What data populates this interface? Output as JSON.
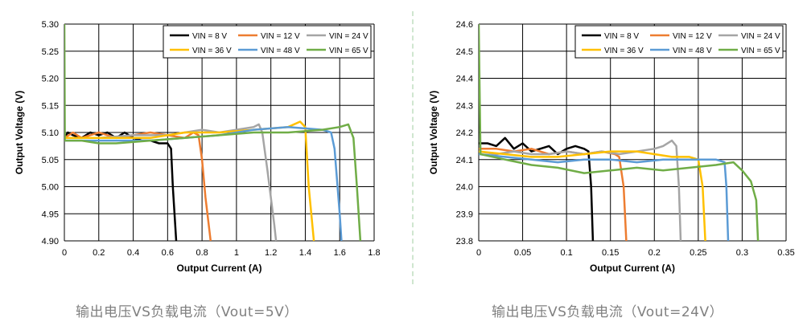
{
  "captions": {
    "left": "输出电压VS负载电流（Vout=5V）",
    "right": "输出电压VS负载电流（Vout=24V）"
  },
  "colors": {
    "VIN = 8 V": "#000000",
    "VIN = 12 V": "#ED7D31",
    "VIN = 24 V": "#A5A5A5",
    "VIN = 36 V": "#FFC000",
    "VIN = 48 V": "#5B9BD5",
    "VIN = 65 V": "#70AD47"
  },
  "chart_data": [
    {
      "type": "line",
      "xlabel": "Output Current (A)",
      "ylabel": "Output Voltage (V)",
      "xlim": [
        0,
        1.8
      ],
      "ylim": [
        4.9,
        5.3
      ],
      "xticks": [
        "0",
        "0.2",
        "0.4",
        "0.6",
        "0.8",
        "1",
        "1.2",
        "1.4",
        "1.6",
        "1.8"
      ],
      "yticks": [
        "4.90",
        "4.95",
        "5.00",
        "5.05",
        "5.10",
        "5.15",
        "5.20",
        "5.25",
        "5.30"
      ],
      "grid": true,
      "legend_position": "top-right",
      "series": [
        {
          "name": "VIN = 8 V",
          "points": [
            [
              0,
              5.09
            ],
            [
              0.02,
              5.1
            ],
            [
              0.05,
              5.095
            ],
            [
              0.1,
              5.09
            ],
            [
              0.15,
              5.1
            ],
            [
              0.2,
              5.095
            ],
            [
              0.25,
              5.1
            ],
            [
              0.3,
              5.09
            ],
            [
              0.35,
              5.1
            ],
            [
              0.4,
              5.09
            ],
            [
              0.45,
              5.085
            ],
            [
              0.5,
              5.085
            ],
            [
              0.55,
              5.08
            ],
            [
              0.6,
              5.08
            ],
            [
              0.62,
              5.07
            ],
            [
              0.63,
              5.0
            ],
            [
              0.65,
              4.9
            ]
          ]
        },
        {
          "name": "VIN = 12 V",
          "points": [
            [
              0,
              5.09
            ],
            [
              0.05,
              5.1
            ],
            [
              0.1,
              5.09
            ],
            [
              0.2,
              5.1
            ],
            [
              0.3,
              5.09
            ],
            [
              0.4,
              5.095
            ],
            [
              0.5,
              5.1
            ],
            [
              0.6,
              5.095
            ],
            [
              0.7,
              5.09
            ],
            [
              0.75,
              5.1
            ],
            [
              0.78,
              5.095
            ],
            [
              0.8,
              5.05
            ],
            [
              0.82,
              4.98
            ],
            [
              0.85,
              4.9
            ]
          ]
        },
        {
          "name": "VIN = 24 V",
          "points": [
            [
              0,
              5.09
            ],
            [
              0.1,
              5.09
            ],
            [
              0.2,
              5.09
            ],
            [
              0.4,
              5.095
            ],
            [
              0.6,
              5.095
            ],
            [
              0.8,
              5.105
            ],
            [
              0.9,
              5.1
            ],
            [
              1.0,
              5.105
            ],
            [
              1.1,
              5.11
            ],
            [
              1.13,
              5.115
            ],
            [
              1.15,
              5.1
            ],
            [
              1.18,
              5.03
            ],
            [
              1.22,
              4.93
            ],
            [
              1.23,
              4.9
            ]
          ]
        },
        {
          "name": "VIN = 36 V",
          "points": [
            [
              0,
              5.09
            ],
            [
              0.1,
              5.09
            ],
            [
              0.3,
              5.09
            ],
            [
              0.5,
              5.09
            ],
            [
              0.7,
              5.1
            ],
            [
              0.9,
              5.1
            ],
            [
              1.1,
              5.105
            ],
            [
              1.3,
              5.11
            ],
            [
              1.37,
              5.12
            ],
            [
              1.4,
              5.11
            ],
            [
              1.42,
              5.0
            ],
            [
              1.45,
              4.9
            ]
          ]
        },
        {
          "name": "VIN = 48 V",
          "points": [
            [
              0,
              5.085
            ],
            [
              0.1,
              5.085
            ],
            [
              0.3,
              5.085
            ],
            [
              0.5,
              5.085
            ],
            [
              0.7,
              5.09
            ],
            [
              0.9,
              5.095
            ],
            [
              1.1,
              5.105
            ],
            [
              1.3,
              5.11
            ],
            [
              1.5,
              5.105
            ],
            [
              1.55,
              5.1
            ],
            [
              1.57,
              5.07
            ],
            [
              1.6,
              4.95
            ],
            [
              1.61,
              4.9
            ]
          ]
        },
        {
          "name": "VIN = 65 V",
          "points": [
            [
              0,
              5.3
            ],
            [
              0.003,
              5.085
            ],
            [
              0.1,
              5.085
            ],
            [
              0.2,
              5.08
            ],
            [
              0.3,
              5.08
            ],
            [
              0.5,
              5.085
            ],
            [
              0.7,
              5.09
            ],
            [
              0.9,
              5.095
            ],
            [
              1.1,
              5.1
            ],
            [
              1.3,
              5.1
            ],
            [
              1.5,
              5.105
            ],
            [
              1.6,
              5.11
            ],
            [
              1.65,
              5.115
            ],
            [
              1.68,
              5.09
            ],
            [
              1.7,
              5.0
            ],
            [
              1.72,
              4.9
            ]
          ]
        }
      ]
    },
    {
      "type": "line",
      "xlabel": "Output Current (A)",
      "ylabel": "Output Voltage (V)",
      "xlim": [
        0,
        0.35
      ],
      "ylim": [
        23.8,
        24.6
      ],
      "xticks": [
        "0",
        "0.05",
        "0.1",
        "0.15",
        "0.2",
        "0.25",
        "0.3",
        "0.35"
      ],
      "yticks": [
        "23.8",
        "23.9",
        "24.0",
        "24.1",
        "24.2",
        "24.3",
        "24.4",
        "24.5",
        "24.6"
      ],
      "grid": true,
      "legend_position": "top-right",
      "series": [
        {
          "name": "VIN = 8 V",
          "points": [
            [
              0,
              24.16
            ],
            [
              0.01,
              24.16
            ],
            [
              0.02,
              24.15
            ],
            [
              0.03,
              24.18
            ],
            [
              0.04,
              24.14
            ],
            [
              0.05,
              24.16
            ],
            [
              0.06,
              24.13
            ],
            [
              0.07,
              24.14
            ],
            [
              0.08,
              24.15
            ],
            [
              0.09,
              24.12
            ],
            [
              0.1,
              24.14
            ],
            [
              0.11,
              24.15
            ],
            [
              0.12,
              24.14
            ],
            [
              0.125,
              24.13
            ],
            [
              0.128,
              24.0
            ],
            [
              0.13,
              23.8
            ]
          ]
        },
        {
          "name": "VIN = 12 V",
          "points": [
            [
              0,
              24.14
            ],
            [
              0.02,
              24.14
            ],
            [
              0.04,
              24.13
            ],
            [
              0.06,
              24.14
            ],
            [
              0.08,
              24.12
            ],
            [
              0.1,
              24.13
            ],
            [
              0.12,
              24.12
            ],
            [
              0.14,
              24.13
            ],
            [
              0.155,
              24.12
            ],
            [
              0.16,
              24.11
            ],
            [
              0.165,
              24.0
            ],
            [
              0.168,
              23.8
            ]
          ]
        },
        {
          "name": "VIN = 24 V",
          "points": [
            [
              0,
              24.13
            ],
            [
              0.02,
              24.12
            ],
            [
              0.04,
              24.13
            ],
            [
              0.06,
              24.12
            ],
            [
              0.08,
              24.12
            ],
            [
              0.1,
              24.13
            ],
            [
              0.12,
              24.12
            ],
            [
              0.14,
              24.13
            ],
            [
              0.16,
              24.12
            ],
            [
              0.18,
              24.13
            ],
            [
              0.2,
              24.14
            ],
            [
              0.21,
              24.15
            ],
            [
              0.22,
              24.17
            ],
            [
              0.225,
              24.15
            ],
            [
              0.228,
              24.0
            ],
            [
              0.23,
              23.8
            ]
          ]
        },
        {
          "name": "VIN = 36 V",
          "points": [
            [
              0,
              24.13
            ],
            [
              0.03,
              24.12
            ],
            [
              0.06,
              24.11
            ],
            [
              0.09,
              24.11
            ],
            [
              0.12,
              24.12
            ],
            [
              0.15,
              24.13
            ],
            [
              0.18,
              24.13
            ],
            [
              0.2,
              24.12
            ],
            [
              0.22,
              24.11
            ],
            [
              0.24,
              24.11
            ],
            [
              0.25,
              24.1
            ],
            [
              0.255,
              24.0
            ],
            [
              0.258,
              23.8
            ]
          ]
        },
        {
          "name": "VIN = 48 V",
          "points": [
            [
              0,
              24.12
            ],
            [
              0.03,
              24.11
            ],
            [
              0.06,
              24.1
            ],
            [
              0.09,
              24.09
            ],
            [
              0.12,
              24.1
            ],
            [
              0.15,
              24.1
            ],
            [
              0.18,
              24.09
            ],
            [
              0.21,
              24.1
            ],
            [
              0.24,
              24.1
            ],
            [
              0.27,
              24.1
            ],
            [
              0.28,
              24.09
            ],
            [
              0.282,
              24.0
            ],
            [
              0.284,
              23.8
            ]
          ]
        },
        {
          "name": "VIN = 65 V",
          "points": [
            [
              0,
              24.6
            ],
            [
              0.002,
              24.12
            ],
            [
              0.03,
              24.1
            ],
            [
              0.06,
              24.08
            ],
            [
              0.09,
              24.07
            ],
            [
              0.12,
              24.05
            ],
            [
              0.15,
              24.06
            ],
            [
              0.18,
              24.07
            ],
            [
              0.21,
              24.06
            ],
            [
              0.24,
              24.07
            ],
            [
              0.27,
              24.08
            ],
            [
              0.29,
              24.09
            ],
            [
              0.3,
              24.06
            ],
            [
              0.31,
              24.02
            ],
            [
              0.316,
              23.95
            ],
            [
              0.318,
              23.8
            ]
          ]
        }
      ]
    }
  ]
}
